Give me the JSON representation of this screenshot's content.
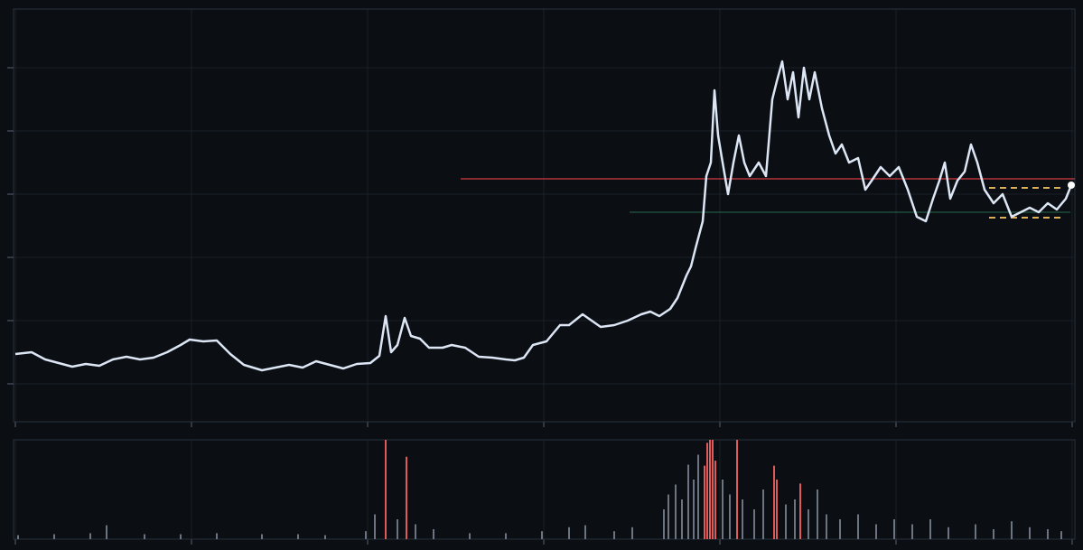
{
  "chart_data": [
    {
      "type": "line",
      "grid": true,
      "xlim": [
        -2,
        1173
      ],
      "ylim": [
        -42,
        415
      ],
      "xticks": [
        0,
        195,
        390,
        585,
        780,
        975,
        1170
      ],
      "yticks": [
        0,
        70,
        140,
        210,
        280,
        350
      ],
      "x": [
        0,
        18,
        33,
        48,
        63,
        78,
        93,
        108,
        123,
        138,
        153,
        168,
        183,
        193,
        208,
        223,
        238,
        253,
        273,
        288,
        303,
        318,
        333,
        348,
        363,
        378,
        393,
        403,
        410,
        416,
        423,
        431,
        438,
        448,
        458,
        473,
        483,
        498,
        513,
        528,
        543,
        553,
        563,
        573,
        588,
        603,
        613,
        628,
        638,
        648,
        663,
        678,
        693,
        703,
        713,
        725,
        733,
        743,
        748,
        753,
        761,
        765,
        770,
        774,
        778,
        783,
        789,
        795,
        801,
        807,
        813,
        823,
        831,
        838,
        843,
        849,
        855,
        861,
        867,
        873,
        879,
        885,
        893,
        901,
        908,
        915,
        923,
        933,
        941,
        948,
        958,
        968,
        978,
        988,
        998,
        1008,
        1016,
        1023,
        1029,
        1035,
        1043,
        1051,
        1058,
        1065,
        1073,
        1083,
        1093,
        1103,
        1113,
        1123,
        1133,
        1143,
        1153,
        1163,
        1169
      ],
      "series": [
        {
          "color": "#dce6f5",
          "values": [
            33,
            35,
            27,
            23,
            19,
            22,
            20,
            27,
            30,
            27,
            29,
            35,
            43,
            49,
            47,
            48,
            33,
            21,
            15,
            18,
            21,
            18,
            25,
            21,
            17,
            22,
            23,
            31,
            75,
            35,
            43,
            73,
            53,
            50,
            40,
            40,
            43,
            40,
            30,
            29,
            27,
            26,
            29,
            43,
            47,
            65,
            65,
            77,
            70,
            63,
            65,
            70,
            77,
            80,
            75,
            83,
            95,
            120,
            130,
            150,
            180,
            230,
            245,
            325,
            275,
            245,
            210,
            245,
            275,
            245,
            230,
            245,
            230,
            315,
            335,
            357,
            315,
            345,
            295,
            350,
            315,
            345,
            305,
            275,
            255,
            265,
            245,
            250,
            215,
            225,
            240,
            230,
            240,
            215,
            185,
            180,
            205,
            225,
            245,
            205,
            225,
            235,
            265,
            245,
            215,
            200,
            210,
            185,
            190,
            195,
            190,
            200,
            193,
            205,
            220
          ]
        }
      ],
      "reference_lines": [
        {
          "y": 227,
          "x": [
            493,
            1173
          ],
          "color": "#b3343a",
          "dashed": false
        },
        {
          "y": 190,
          "x": [
            680,
            1168
          ],
          "color": "#1f4a3a",
          "dashed": false
        },
        {
          "y": 217,
          "x": [
            1078,
            1158
          ],
          "color": "#e0b050",
          "dashed": true
        },
        {
          "y": 184,
          "x": [
            1078,
            1158
          ],
          "color": "#e0b050",
          "dashed": true
        }
      ]
    },
    {
      "type": "bar",
      "grid": true,
      "xlim": [
        -2,
        1173
      ],
      "ylim": [
        0,
        100
      ],
      "xticks": [
        0,
        195,
        390,
        585,
        780,
        975,
        1170
      ],
      "series": [
        {
          "color": "#6b7480",
          "x": [
            3,
            43,
            83,
            101,
            143,
            183,
            223,
            273,
            313,
            343,
            388,
            398,
            423,
            443,
            463,
            503,
            543,
            583,
            613,
            631,
            663,
            683,
            718,
            723,
            731,
            738,
            745,
            751,
            756,
            783,
            791,
            805,
            818,
            828,
            853,
            863,
            878,
            888,
            898,
            913,
            933,
            953,
            973,
            993,
            1013,
            1033,
            1063,
            1083,
            1103,
            1123,
            1143,
            1158
          ],
          "values": [
            4,
            5,
            6,
            14,
            5,
            5,
            6,
            5,
            5,
            4,
            8,
            25,
            20,
            15,
            10,
            6,
            6,
            8,
            12,
            14,
            8,
            12,
            30,
            45,
            55,
            40,
            75,
            60,
            85,
            60,
            45,
            40,
            30,
            50,
            35,
            40,
            30,
            50,
            25,
            20,
            25,
            15,
            20,
            15,
            20,
            12,
            15,
            10,
            18,
            12,
            10,
            8
          ]
        },
        {
          "color": "#e05a5a",
          "x": [
            410,
            433,
            763,
            766,
            769,
            772,
            775,
            799,
            840,
            843,
            869
          ],
          "values": [
            100,
            83,
            74,
            97,
            100,
            100,
            79,
            100,
            74,
            60,
            56
          ]
        }
      ]
    }
  ]
}
